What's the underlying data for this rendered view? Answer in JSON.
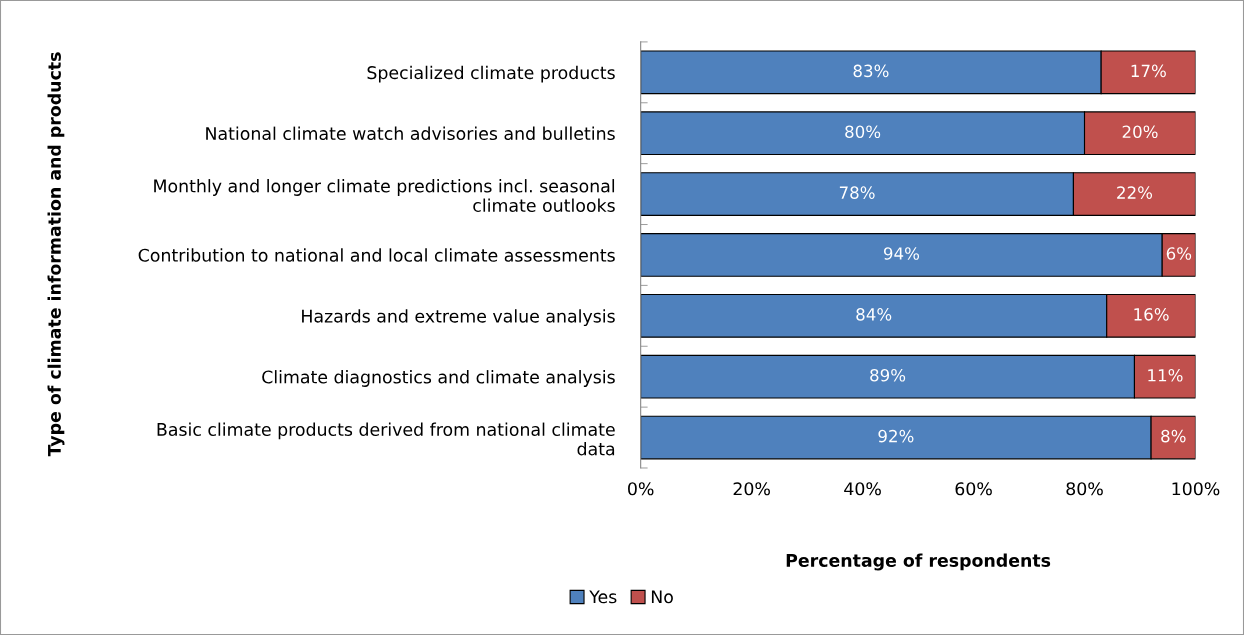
{
  "chart_data": {
    "type": "bar",
    "orientation": "horizontal",
    "stacked": true,
    "xlabel": "Percentage of respondents",
    "ylabel": "Type of climate information and products",
    "categories": [
      "Specialized climate products",
      "National climate watch advisories and bulletins",
      "Monthly and longer climate predictions incl. seasonal\nclimate outlooks",
      "Contribution to national and local climate assessments",
      "Hazards and extreme value analysis",
      "Climate diagnostics and climate analysis",
      "Basic climate products derived from national climate\ndata"
    ],
    "series": [
      {
        "name": "Yes",
        "color": "#4f81bd",
        "values": [
          83,
          80,
          78,
          94,
          84,
          89,
          92
        ],
        "value_labels": [
          "83%",
          "80%",
          "78%",
          "94%",
          "84%",
          "89%",
          "92%"
        ]
      },
      {
        "name": "No",
        "color": "#c0504d",
        "values": [
          17,
          20,
          22,
          6,
          16,
          11,
          8
        ],
        "value_labels": [
          "17%",
          "20%",
          "22%",
          "6%",
          "16%",
          "11%",
          "8%"
        ]
      }
    ],
    "xlim": [
      0,
      100
    ],
    "xticks": [
      {
        "value": 0,
        "label": "0%"
      },
      {
        "value": 20,
        "label": "20%"
      },
      {
        "value": 40,
        "label": "40%"
      },
      {
        "value": 60,
        "label": "60%"
      },
      {
        "value": 80,
        "label": "80%"
      },
      {
        "value": 100,
        "label": "100%"
      }
    ],
    "grid": false,
    "legend": "bottom"
  }
}
